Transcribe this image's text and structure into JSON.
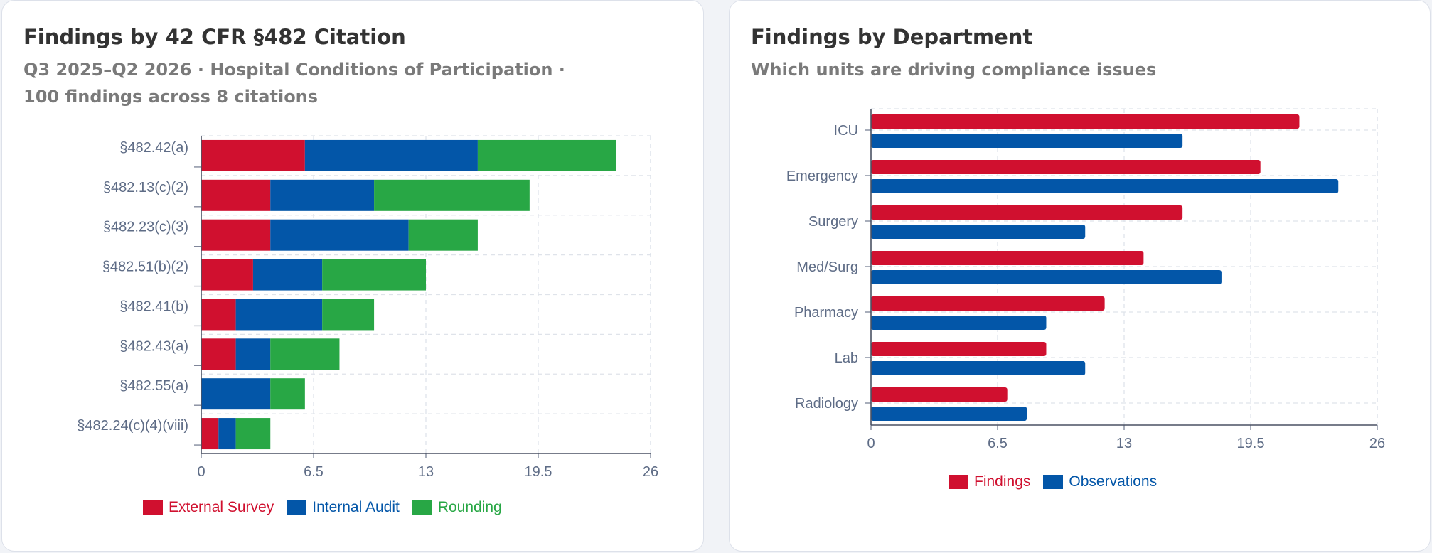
{
  "chart_data": [
    {
      "type": "bar",
      "orientation": "horizontal",
      "stacked": true,
      "title": "Findings by 42 CFR §482 Citation",
      "subtitle_line1": "Q3 2025–Q2 2026 · Hospital Conditions of Participation ·",
      "subtitle_line2": "100 findings across 8 citations",
      "categories": [
        "§482.42(a)",
        "§482.13(c)(2)",
        "§482.23(c)(3)",
        "§482.51(b)(2)",
        "§482.41(b)",
        "§482.43(a)",
        "§482.55(a)",
        "§482.24(c)(4)(viii)"
      ],
      "series": [
        {
          "name": "External Survey",
          "color": "#d0102f",
          "values": [
            6,
            4,
            4,
            3,
            2,
            2,
            0,
            1
          ]
        },
        {
          "name": "Internal Audit",
          "color": "#0356a8",
          "values": [
            10,
            6,
            8,
            4,
            5,
            2,
            4,
            1
          ]
        },
        {
          "name": "Rounding",
          "color": "#28a745",
          "values": [
            8,
            9,
            4,
            6,
            3,
            4,
            2,
            2
          ]
        }
      ],
      "xlim": [
        0,
        26
      ],
      "xticks": [
        "0",
        "6.5",
        "13",
        "19.5",
        "26"
      ],
      "grid": true,
      "legend": "bottom"
    },
    {
      "type": "bar",
      "orientation": "horizontal",
      "stacked": false,
      "title": "Findings by Department",
      "subtitle": "Which units are driving compliance issues",
      "categories": [
        "ICU",
        "Emergency",
        "Surgery",
        "Med/Surg",
        "Pharmacy",
        "Lab",
        "Radiology"
      ],
      "series": [
        {
          "name": "Findings",
          "color": "#d0102f",
          "values": [
            22,
            20,
            16,
            14,
            12,
            9,
            7
          ]
        },
        {
          "name": "Observations",
          "color": "#0356a8",
          "values": [
            16,
            24,
            11,
            18,
            9,
            11,
            8
          ]
        }
      ],
      "xlim": [
        0,
        26
      ],
      "xticks": [
        "0",
        "6.5",
        "13",
        "19.5",
        "26"
      ],
      "grid": true,
      "legend": "bottom"
    }
  ]
}
